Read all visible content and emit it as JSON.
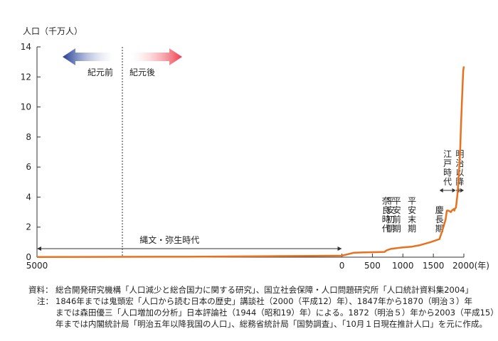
{
  "chart_data": {
    "type": "line",
    "ylabel": "人口（千万人）",
    "x_axis_end_label": "2000(年)",
    "ylim": [
      0,
      14
    ],
    "xlim": [
      -5000,
      2000
    ],
    "x_ticks": [
      {
        "value": -5000,
        "label": "5000"
      },
      {
        "value": 0,
        "label": "0"
      },
      {
        "value": 500,
        "label": "500"
      },
      {
        "value": 1000,
        "label": "1000"
      },
      {
        "value": 1500,
        "label": "1500"
      }
    ],
    "y_ticks": [
      0,
      2,
      4,
      6,
      8,
      10,
      12,
      14
    ],
    "grid": false,
    "line_color": "#e8711f",
    "series": [
      {
        "name": "",
        "x": [
          -5000,
          -3000,
          -2500,
          -1000,
          -500,
          0,
          200,
          700,
          730,
          800,
          900,
          1000,
          1150,
          1280,
          1450,
          1600,
          1650,
          1700,
          1721,
          1750,
          1786,
          1800,
          1834,
          1846,
          1850,
          1870,
          1890,
          1900,
          1920,
          1940,
          1950,
          1970,
          1990,
          2000
        ],
        "y": [
          0.01,
          0.03,
          0.03,
          0.07,
          0.08,
          0.1,
          0.3,
          0.35,
          0.45,
          0.55,
          0.6,
          0.65,
          0.7,
          0.8,
          1.0,
          1.2,
          1.8,
          2.5,
          3.1,
          3.1,
          3.0,
          3.1,
          3.2,
          3.1,
          3.2,
          3.3,
          4.0,
          4.4,
          5.6,
          7.2,
          8.4,
          10.5,
          12.4,
          12.7
        ]
      }
    ],
    "era_divider": {
      "x": 0,
      "left_label": "紀元前",
      "right_label": "紀元後",
      "left_arrow_color": "#1f3a93",
      "right_arrow_color": "#ee3b4a"
    },
    "periods": [
      {
        "label": "縄文・弥生時代",
        "x_start": -5000,
        "x_end": 0
      },
      {
        "label": "江戸時代",
        "x_start": 1600,
        "x_end": 1867
      },
      {
        "label": "明治以降",
        "x_start": 1868,
        "x_end": 2000
      }
    ],
    "era_annotations": [
      {
        "label": "奈良時代",
        "x": 725
      },
      {
        "label": "平安初期",
        "x": 800
      },
      {
        "label": "平安前期",
        "x": 900
      },
      {
        "label": "平安末期",
        "x": 1150
      },
      {
        "label": "慶長期",
        "x": 1600
      }
    ]
  },
  "notes": {
    "sources_label": "資料：",
    "sources_text": "総合開発研究機構「人口減少と総合国力に関する研究」、国立社会保障・人口問題研究所「人口統計資料集2004」",
    "note_label": "注：",
    "note_line1": "1846年までは鬼頭宏「人口から読む日本の歴史」講談社（2000（平成12）年）、1847年から1870（明治３）年",
    "note_line2": "までは森田優三「人口増加の分析」日本評論社（1944（昭和19）年）による。1872（明治５）年から2003（平成15）",
    "note_line3": "年までは内閣統計局「明治五年以降我国の人口」、総務省統計局「国勢調査」、「10月１日現在推計人口」を元に作成。"
  }
}
